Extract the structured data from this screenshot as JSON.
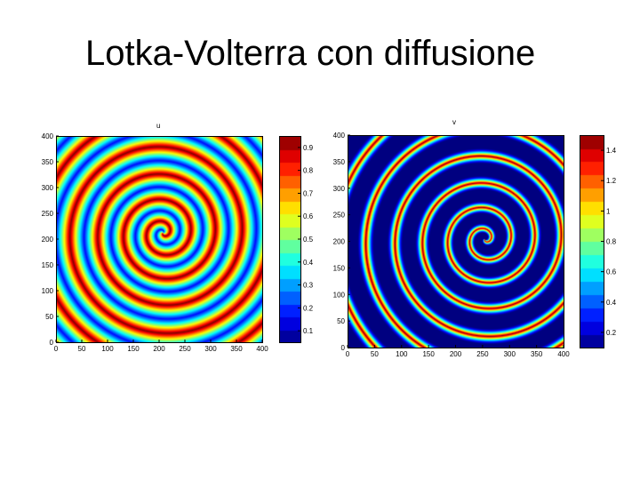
{
  "slide": {
    "title": "Lotka-Volterra con diffusione"
  },
  "chart_data": [
    {
      "type": "heatmap",
      "title": "u",
      "colormap": "jet",
      "description_values": "spiral wave pattern",
      "x_ticks": [
        "0",
        "50",
        "100",
        "150",
        "200",
        "250",
        "300",
        "350",
        "400"
      ],
      "y_ticks": [
        "0",
        "50",
        "100",
        "150",
        "200",
        "250",
        "300",
        "350",
        "400"
      ],
      "xlim": [
        0,
        400
      ],
      "ylim": [
        0,
        400
      ],
      "colorbar": {
        "range": [
          0.05,
          0.95
        ],
        "ticks": [
          "0.1",
          "0.2",
          "0.3",
          "0.4",
          "0.5",
          "0.6",
          "0.7",
          "0.8",
          "0.9"
        ]
      },
      "spiral_center": [
        207,
        213
      ],
      "peak_fraction": 0.3,
      "grid": false
    },
    {
      "type": "heatmap",
      "title": "v",
      "colormap": "jet",
      "x_ticks": [
        "0",
        "50",
        "100",
        "150",
        "200",
        "250",
        "300",
        "350",
        "400"
      ],
      "y_ticks": [
        "0",
        "50",
        "100",
        "150",
        "200",
        "250",
        "300",
        "350",
        "400"
      ],
      "xlim": [
        0,
        400
      ],
      "ylim": [
        0,
        400
      ],
      "colorbar": {
        "range": [
          0.1,
          1.5
        ],
        "ticks": [
          "0.2",
          "0.4",
          "0.6",
          "0.8",
          "1",
          "1.2",
          "1.4"
        ]
      },
      "spiral_center": [
        254,
        205
      ],
      "peak_fraction": 0.1,
      "grid": false
    }
  ]
}
